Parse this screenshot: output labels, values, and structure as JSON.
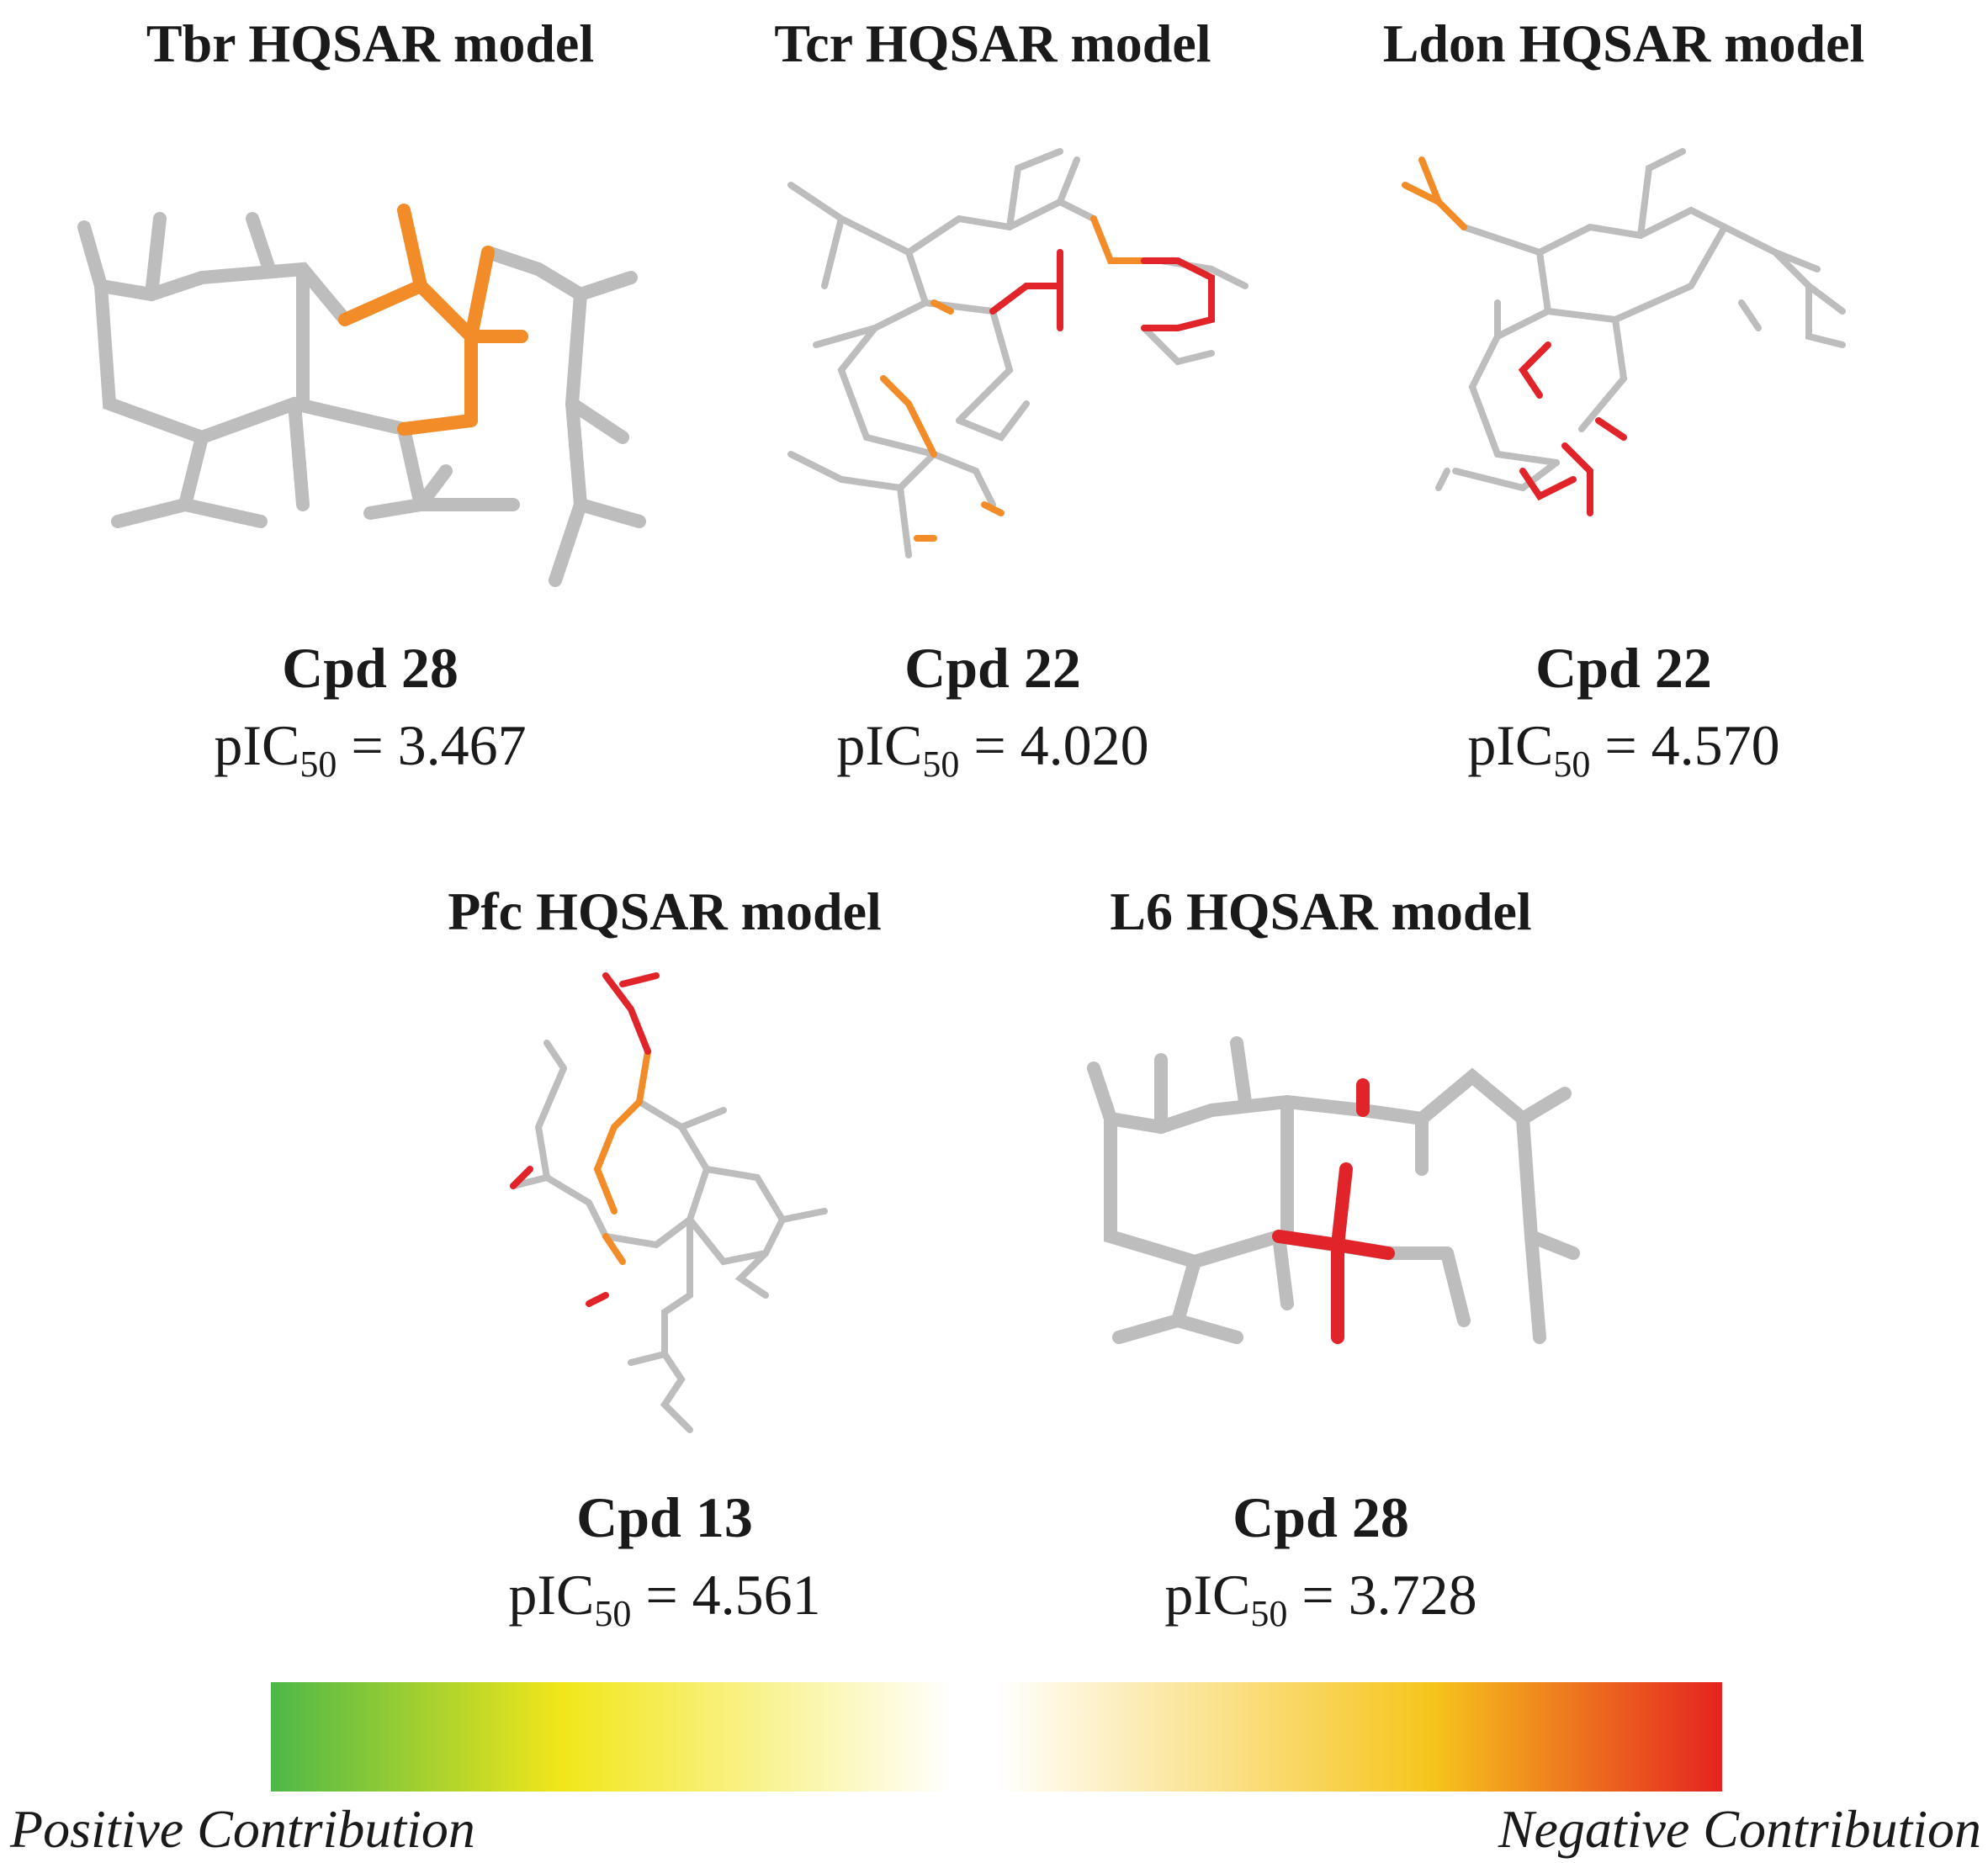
{
  "colors": {
    "carbon_bond": "#c9c9c9",
    "positive_fragment": "#f28c28",
    "negative_fragment": "#e0242a",
    "scale_stops": [
      "#4db848",
      "#f2e61a",
      "#ffffff",
      "#f6c51c",
      "#e52320"
    ]
  },
  "panels": [
    {
      "title": "Tbr HQSAR model",
      "cpd": "Cpd 28",
      "pic50_label": "pIC",
      "pic50_sub": "50",
      "pic50_value": " = 3.467"
    },
    {
      "title": "Tcr HQSAR model",
      "cpd": "Cpd 22",
      "pic50_label": "pIC",
      "pic50_sub": "50",
      "pic50_value": " = 4.020"
    },
    {
      "title": "Ldon HQSAR model",
      "cpd": "Cpd 22",
      "pic50_label": "pIC",
      "pic50_sub": "50",
      "pic50_value": " = 4.570"
    },
    {
      "title": "Pfc HQSAR model",
      "cpd": "Cpd 13",
      "pic50_label": "pIC",
      "pic50_sub": "50",
      "pic50_value": " = 4.561"
    },
    {
      "title": "L6 HQSAR model",
      "cpd": "Cpd 28",
      "pic50_label": "pIC",
      "pic50_sub": "50",
      "pic50_value": " = 3.728"
    }
  ],
  "legend": {
    "positive": "Positive Contribution",
    "negative": "Negative Contribution"
  }
}
